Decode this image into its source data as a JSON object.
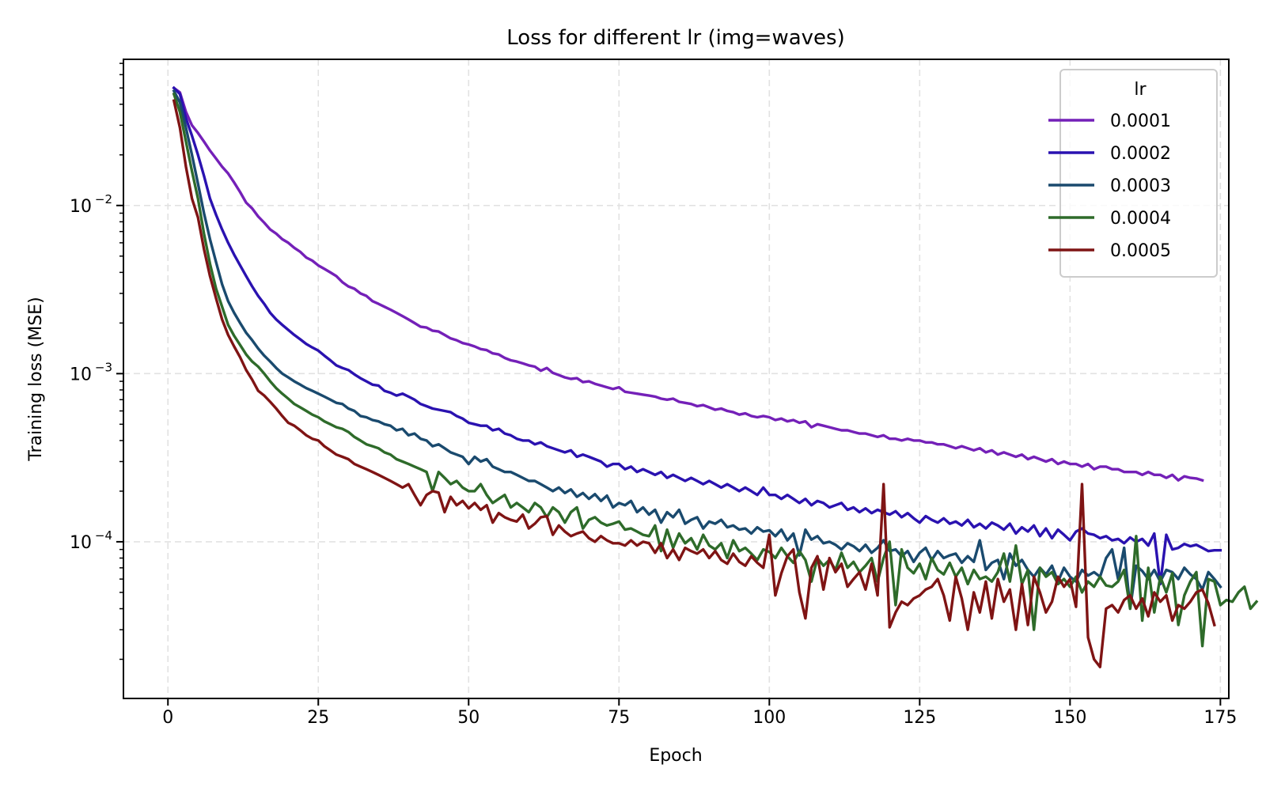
{
  "chart_data": {
    "type": "line",
    "title": "Loss for different lr (img=waves)",
    "xlabel": "Epoch",
    "ylabel": "Training loss (MSE)",
    "yscale": "log",
    "xlim": [
      -7.4,
      176.4
    ],
    "ylim": [
      1.17e-05,
      0.074
    ],
    "xticks": [
      0,
      25,
      50,
      75,
      100,
      125,
      150,
      175
    ],
    "xtick_labels": [
      "0",
      "25",
      "50",
      "75",
      "100",
      "125",
      "150",
      "175"
    ],
    "yticks": [
      0.01,
      0.001,
      0.0001
    ],
    "ytick_labels": [
      {
        "base": "10",
        "exp": "−2"
      },
      {
        "base": "10",
        "exp": "−3"
      },
      {
        "base": "10",
        "exp": "−4"
      }
    ],
    "grid": true,
    "legend": {
      "title": "lr",
      "position": "top-right"
    },
    "x_start": 1,
    "x_end": 168,
    "series": [
      {
        "name": "0.0001",
        "color": "#7420b8",
        "values": [
          0.05,
          0.047,
          0.036,
          0.03,
          0.027,
          0.024,
          0.0212,
          0.019,
          0.017,
          0.0155,
          0.0137,
          0.012,
          0.0104,
          0.0096,
          0.0086,
          0.0079,
          0.0072,
          0.0068,
          0.0063,
          0.006,
          0.0056,
          0.0053,
          0.0049,
          0.0047,
          0.0044,
          0.0042,
          0.004,
          0.0038,
          0.0035,
          0.0033,
          0.0032,
          0.003,
          0.0029,
          0.0027,
          0.0026,
          0.0025,
          0.0024,
          0.0023,
          0.0022,
          0.0021,
          0.002,
          0.0019,
          0.00188,
          0.0018,
          0.00178,
          0.0017,
          0.00162,
          0.00158,
          0.00152,
          0.00149,
          0.00145,
          0.0014,
          0.00138,
          0.00132,
          0.0013,
          0.00124,
          0.0012,
          0.00118,
          0.00115,
          0.00112,
          0.0011,
          0.00104,
          0.00108,
          0.00101,
          0.00098,
          0.00095,
          0.00093,
          0.00094,
          0.00089,
          0.0009,
          0.00087,
          0.00085,
          0.00083,
          0.00081,
          0.00083,
          0.00078,
          0.00077,
          0.00076,
          0.00075,
          0.00074,
          0.00073,
          0.00071,
          0.0007,
          0.00071,
          0.00068,
          0.00067,
          0.00066,
          0.00064,
          0.00065,
          0.00063,
          0.00061,
          0.00062,
          0.0006,
          0.00059,
          0.00057,
          0.00058,
          0.00056,
          0.00055,
          0.00056,
          0.00055,
          0.00053,
          0.00054,
          0.00052,
          0.00053,
          0.00051,
          0.00052,
          0.00048,
          0.0005,
          0.00049,
          0.00048,
          0.00047,
          0.00046,
          0.00046,
          0.00045,
          0.00044,
          0.00044,
          0.00043,
          0.00042,
          0.00043,
          0.00041,
          0.00041,
          0.0004,
          0.00041,
          0.0004,
          0.0004,
          0.00039,
          0.00039,
          0.00038,
          0.00038,
          0.00037,
          0.00036,
          0.00037,
          0.00036,
          0.00035,
          0.00036,
          0.00034,
          0.00035,
          0.00033,
          0.00034,
          0.00033,
          0.00032,
          0.00033,
          0.00031,
          0.00032,
          0.00031,
          0.0003,
          0.00031,
          0.00029,
          0.0003,
          0.00029,
          0.00029,
          0.00028,
          0.00029,
          0.00027,
          0.00028,
          0.00028,
          0.00027,
          0.00027,
          0.00026,
          0.00026,
          0.00026,
          0.00025,
          0.00026,
          0.00025,
          0.00025,
          0.00024,
          0.00025,
          0.000232,
          0.000245,
          0.00024,
          0.000238,
          0.000232
        ]
      },
      {
        "name": "0.0002",
        "color": "#2a12b0",
        "values": [
          0.05,
          0.046,
          0.033,
          0.026,
          0.02,
          0.015,
          0.011,
          0.0088,
          0.0072,
          0.006,
          0.0051,
          0.0044,
          0.0038,
          0.0033,
          0.0029,
          0.0026,
          0.0023,
          0.0021,
          0.00195,
          0.00182,
          0.0017,
          0.0016,
          0.0015,
          0.00143,
          0.00137,
          0.00128,
          0.0012,
          0.00112,
          0.00108,
          0.00105,
          0.00099,
          0.00094,
          0.0009,
          0.00086,
          0.00085,
          0.00079,
          0.00077,
          0.00074,
          0.00076,
          0.00073,
          0.0007,
          0.00066,
          0.00064,
          0.00062,
          0.00061,
          0.0006,
          0.00059,
          0.00056,
          0.00054,
          0.00051,
          0.0005,
          0.00049,
          0.00049,
          0.00046,
          0.00047,
          0.00044,
          0.00043,
          0.00041,
          0.0004,
          0.0004,
          0.00038,
          0.00039,
          0.00037,
          0.00036,
          0.00035,
          0.00034,
          0.00035,
          0.00032,
          0.00033,
          0.00032,
          0.00031,
          0.0003,
          0.00028,
          0.00029,
          0.00029,
          0.00027,
          0.00028,
          0.00026,
          0.00027,
          0.00026,
          0.00025,
          0.00026,
          0.00024,
          0.00025,
          0.00024,
          0.00023,
          0.00024,
          0.00023,
          0.00022,
          0.00023,
          0.00022,
          0.00021,
          0.00022,
          0.00021,
          0.0002,
          0.00021,
          0.0002,
          0.00019,
          0.00021,
          0.00019,
          0.00019,
          0.00018,
          0.00019,
          0.00018,
          0.00017,
          0.00018,
          0.000165,
          0.000175,
          0.00017,
          0.00016,
          0.000165,
          0.00017,
          0.000155,
          0.00016,
          0.00015,
          0.000158,
          0.000148,
          0.000155,
          0.00015,
          0.000145,
          0.000152,
          0.00014,
          0.000148,
          0.000138,
          0.00013,
          0.000142,
          0.000135,
          0.00013,
          0.000138,
          0.000128,
          0.000132,
          0.000125,
          0.000135,
          0.000122,
          0.000128,
          0.00012,
          0.00013,
          0.000125,
          0.000118,
          0.000128,
          0.000112,
          0.000122,
          0.000115,
          0.000125,
          0.000108,
          0.00012,
          0.000105,
          0.000118,
          0.00011,
          0.000102,
          0.000115,
          0.00012,
          0.000112,
          0.00011,
          0.000105,
          0.000108,
          0.000102,
          0.000104,
          9.8e-05,
          0.000106,
          0.0001,
          0.000104,
          9.5e-05,
          0.000112,
          5.6e-05,
          0.00011,
          9e-05,
          9.2e-05,
          9.7e-05,
          9.4e-05,
          9.6e-05,
          9.2e-05,
          8.8e-05,
          8.9e-05,
          8.9e-05
        ]
      },
      {
        "name": "0.0003",
        "color": "#1a4a6e",
        "values": [
          0.048,
          0.041,
          0.029,
          0.02,
          0.0135,
          0.009,
          0.0063,
          0.0046,
          0.0034,
          0.0027,
          0.0023,
          0.002,
          0.00175,
          0.00158,
          0.00141,
          0.00128,
          0.00118,
          0.00108,
          0.001,
          0.00095,
          0.0009,
          0.00086,
          0.00082,
          0.00079,
          0.00076,
          0.00073,
          0.0007,
          0.00067,
          0.00066,
          0.00062,
          0.0006,
          0.00056,
          0.00055,
          0.00053,
          0.00052,
          0.0005,
          0.00049,
          0.00046,
          0.00047,
          0.00043,
          0.00044,
          0.00041,
          0.0004,
          0.00037,
          0.00038,
          0.00036,
          0.00034,
          0.00033,
          0.00032,
          0.00029,
          0.00032,
          0.0003,
          0.00031,
          0.00028,
          0.00027,
          0.00026,
          0.00026,
          0.00025,
          0.00024,
          0.00023,
          0.00023,
          0.00022,
          0.00021,
          0.0002,
          0.00021,
          0.000195,
          0.000205,
          0.000185,
          0.000195,
          0.00018,
          0.000192,
          0.000175,
          0.000188,
          0.00016,
          0.00017,
          0.000165,
          0.000175,
          0.00015,
          0.00016,
          0.000145,
          0.000155,
          0.00013,
          0.00015,
          0.00014,
          0.000155,
          0.000128,
          0.000135,
          0.00014,
          0.00012,
          0.000132,
          0.000128,
          0.000135,
          0.000122,
          0.000125,
          0.000118,
          0.00012,
          0.000112,
          0.000122,
          0.000115,
          0.000117,
          0.000108,
          0.000118,
          0.000102,
          0.000112,
          8.3e-05,
          0.000118,
          0.000103,
          0.000108,
          9.8e-05,
          0.0001,
          9.6e-05,
          9e-05,
          9.8e-05,
          9.4e-05,
          8.8e-05,
          9.6e-05,
          8.6e-05,
          9.2e-05,
          0.000102,
          8.8e-05,
          9e-05,
          8.2e-05,
          8.8e-05,
          7.6e-05,
          8.6e-05,
          9.2e-05,
          7.8e-05,
          8.8e-05,
          8e-05,
          8.3e-05,
          8.5e-05,
          7.5e-05,
          8.2e-05,
          7.6e-05,
          0.000102,
          6.8e-05,
          7.5e-05,
          7.8e-05,
          6e-05,
          8.5e-05,
          7.2e-05,
          7.8e-05,
          6.8e-05,
          6.2e-05,
          7e-05,
          6.4e-05,
          7.2e-05,
          5.8e-05,
          7e-05,
          6.2e-05,
          5.8e-05,
          6.8e-05,
          6.3e-05,
          6.6e-05,
          6.2e-05,
          8e-05,
          9e-05,
          6e-05,
          9.2e-05,
          4e-05,
          7.2e-05,
          6.7e-05,
          6e-05,
          6.8e-05,
          5.8e-05,
          6.8e-05,
          6.6e-05,
          6e-05,
          7e-05,
          6.4e-05,
          6e-05,
          5.2e-05,
          6.6e-05,
          6e-05,
          5.4e-05
        ]
      },
      {
        "name": "0.0004",
        "color": "#2e6b2a",
        "values": [
          0.046,
          0.036,
          0.024,
          0.016,
          0.011,
          0.0068,
          0.0045,
          0.0032,
          0.0025,
          0.00195,
          0.00168,
          0.00148,
          0.0013,
          0.00118,
          0.0011,
          0.001,
          0.0009,
          0.00082,
          0.00076,
          0.00071,
          0.00066,
          0.00063,
          0.0006,
          0.00057,
          0.00055,
          0.00052,
          0.0005,
          0.00048,
          0.00047,
          0.00045,
          0.00042,
          0.0004,
          0.00038,
          0.00037,
          0.00036,
          0.00034,
          0.00033,
          0.00031,
          0.0003,
          0.00029,
          0.00028,
          0.00027,
          0.00026,
          0.0002,
          0.00026,
          0.00024,
          0.00022,
          0.00023,
          0.00021,
          0.0002,
          0.0002,
          0.00022,
          0.00019,
          0.00017,
          0.00018,
          0.00019,
          0.00016,
          0.00017,
          0.00016,
          0.00015,
          0.00017,
          0.00016,
          0.00014,
          0.00016,
          0.00015,
          0.00013,
          0.00015,
          0.00016,
          0.00012,
          0.000135,
          0.00014,
          0.00013,
          0.000125,
          0.000128,
          0.000132,
          0.000118,
          0.00012,
          0.000115,
          0.00011,
          0.000108,
          0.000125,
          8.8e-05,
          0.000118,
          9.2e-05,
          0.000112,
          9.8e-05,
          0.000105,
          9e-05,
          0.00011,
          9.5e-05,
          9e-05,
          9.8e-05,
          8e-05,
          0.000102,
          8.8e-05,
          9.2e-05,
          8.5e-05,
          7.8e-05,
          9e-05,
          8.7e-05,
          8e-05,
          9.2e-05,
          8.2e-05,
          7.5e-05,
          8.8e-05,
          7.8e-05,
          5.8e-05,
          8e-05,
          7.2e-05,
          7.8e-05,
          6.8e-05,
          8.6e-05,
          7e-05,
          7.6e-05,
          6.6e-05,
          7.2e-05,
          8e-05,
          5.8e-05,
          8e-05,
          0.0001,
          4.2e-05,
          9e-05,
          7e-05,
          6.5e-05,
          7.4e-05,
          6e-05,
          8e-05,
          6.8e-05,
          6.4e-05,
          7.5e-05,
          6.2e-05,
          7e-05,
          5.6e-05,
          6.8e-05,
          6e-05,
          6.2e-05,
          5.8e-05,
          6.6e-05,
          8.5e-05,
          5.8e-05,
          9.5e-05,
          5.6e-05,
          6.8e-05,
          3e-05,
          7e-05,
          6.2e-05,
          6.6e-05,
          5.6e-05,
          6e-05,
          5.4e-05,
          6.2e-05,
          5e-05,
          5.8e-05,
          5.4e-05,
          6.2e-05,
          5.5e-05,
          5.4e-05,
          5.8e-05,
          6.8e-05,
          4e-05,
          0.000108,
          3.4e-05,
          7e-05,
          3.8e-05,
          6.2e-05,
          5e-05,
          6.5e-05,
          3.2e-05,
          4.8e-05,
          5.8e-05,
          6.6e-05,
          2.4e-05,
          6e-05,
          5.8e-05,
          4.2e-05,
          4.5e-05,
          4.4e-05,
          5e-05,
          5.4e-05,
          4e-05,
          4.4e-05
        ]
      },
      {
        "name": "0.0005",
        "color": "#7f1414",
        "values": [
          0.042,
          0.029,
          0.017,
          0.011,
          0.0085,
          0.0055,
          0.0038,
          0.0028,
          0.0021,
          0.0017,
          0.00145,
          0.00125,
          0.00105,
          0.00092,
          0.00079,
          0.00074,
          0.00068,
          0.00062,
          0.00056,
          0.00051,
          0.00049,
          0.00046,
          0.00043,
          0.00041,
          0.0004,
          0.00037,
          0.00035,
          0.00033,
          0.00032,
          0.00031,
          0.00029,
          0.00028,
          0.00027,
          0.00026,
          0.00025,
          0.00024,
          0.00023,
          0.00022,
          0.00021,
          0.00022,
          0.00019,
          0.000165,
          0.00019,
          0.0002,
          0.000196,
          0.00015,
          0.000185,
          0.000165,
          0.000175,
          0.000158,
          0.00017,
          0.000155,
          0.000165,
          0.00013,
          0.000148,
          0.00014,
          0.000135,
          0.000132,
          0.000145,
          0.00012,
          0.000128,
          0.00014,
          0.000142,
          0.00011,
          0.000125,
          0.000115,
          0.000108,
          0.000112,
          0.000115,
          0.000105,
          0.0001,
          0.000108,
          0.000102,
          9.8e-05,
          9.8e-05,
          9.5e-05,
          0.000102,
          9.5e-05,
          0.0001,
          9.8e-05,
          8.6e-05,
          9.8e-05,
          8e-05,
          9e-05,
          7.8e-05,
          9.2e-05,
          8.8e-05,
          8.5e-05,
          9e-05,
          8e-05,
          8.8e-05,
          7.8e-05,
          7.4e-05,
          8.5e-05,
          7.6e-05,
          7.2e-05,
          8.2e-05,
          7.5e-05,
          7e-05,
          0.00011,
          4.8e-05,
          6.5e-05,
          8.2e-05,
          9e-05,
          5e-05,
          3.5e-05,
          7e-05,
          8.2e-05,
          5.2e-05,
          8e-05,
          6.6e-05,
          7.4e-05,
          5.4e-05,
          6e-05,
          6.6e-05,
          5.2e-05,
          7.4e-05,
          4.8e-05,
          0.00022,
          3.1e-05,
          3.8e-05,
          4.4e-05,
          4.2e-05,
          4.6e-05,
          4.8e-05,
          5.2e-05,
          5.4e-05,
          6e-05,
          4.8e-05,
          3.4e-05,
          6.2e-05,
          4.6e-05,
          3e-05,
          5e-05,
          3.8e-05,
          5.8e-05,
          3.5e-05,
          6e-05,
          4.4e-05,
          5.2e-05,
          3e-05,
          5.6e-05,
          3.2e-05,
          6.2e-05,
          5e-05,
          3.8e-05,
          4.4e-05,
          6.2e-05,
          5.4e-05,
          6e-05,
          4.1e-05,
          0.00022,
          2.7e-05,
          2e-05,
          1.8e-05,
          4e-05,
          4.2e-05,
          3.8e-05,
          4.5e-05,
          4.8e-05,
          4e-05,
          4.6e-05,
          3.6e-05,
          5e-05,
          4.4e-05,
          4.8e-05,
          3.4e-05,
          4.2e-05,
          4e-05,
          4.4e-05,
          5e-05,
          5.2e-05,
          4.3e-05,
          3.2e-05
        ]
      }
    ]
  }
}
